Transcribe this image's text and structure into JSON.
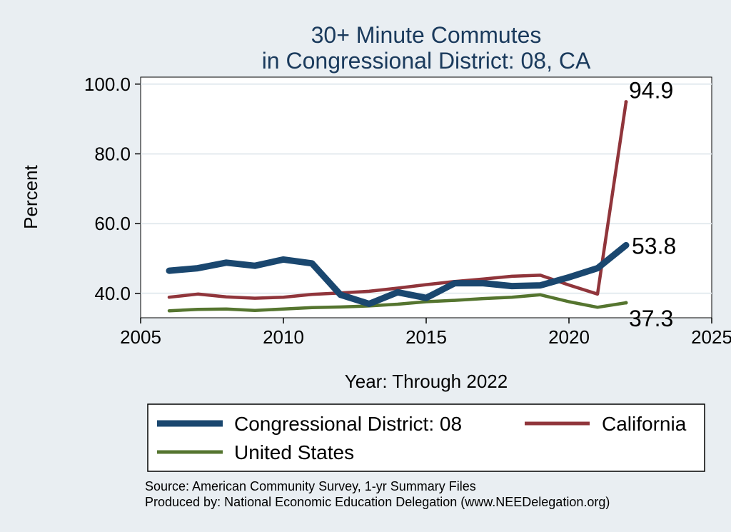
{
  "chart_data": {
    "type": "line",
    "title": [
      "30+ Minute Commutes",
      "in Congressional District:  08, CA"
    ],
    "xlabel": "Year: Through 2022",
    "ylabel": "Percent",
    "xlim": [
      2005,
      2025
    ],
    "ylim": [
      33,
      102
    ],
    "xticks": [
      2005,
      2010,
      2015,
      2020,
      2025
    ],
    "xtick_labels": [
      "2005",
      "2010",
      "2015",
      "2020",
      "2025"
    ],
    "yticks": [
      40,
      60,
      80,
      100
    ],
    "ytick_labels": [
      "40.0",
      "60.0",
      "80.0",
      "100.0"
    ],
    "grid": true,
    "x": [
      2006,
      2007,
      2008,
      2009,
      2010,
      2011,
      2012,
      2013,
      2014,
      2015,
      2016,
      2017,
      2018,
      2019,
      2020,
      2021,
      2022
    ],
    "series": [
      {
        "name": "Congressional District:  08",
        "color": "#1a476f",
        "values": [
          46.5,
          47.2,
          48.8,
          47.9,
          49.7,
          48.6,
          39.6,
          37.0,
          40.3,
          38.7,
          42.9,
          42.9,
          42.1,
          42.3,
          44.6,
          47.2,
          53.8
        ],
        "end_label": "53.8"
      },
      {
        "name": "California",
        "color": "#90353b",
        "values": [
          38.9,
          39.8,
          39.0,
          38.6,
          38.9,
          39.7,
          40.1,
          40.6,
          41.5,
          42.5,
          43.4,
          44.1,
          44.9,
          45.2,
          42.4,
          39.8,
          94.9
        ],
        "end_label": "94.9"
      },
      {
        "name": "United States",
        "color": "#55752f",
        "values": [
          35.0,
          35.4,
          35.5,
          35.1,
          35.5,
          35.9,
          36.1,
          36.4,
          36.9,
          37.6,
          38.0,
          38.5,
          38.9,
          39.6,
          37.6,
          36.0,
          37.3
        ],
        "end_label": "37.3"
      }
    ],
    "legend": [
      "Congressional District:  08",
      "California",
      "United States"
    ],
    "legend_position": "bottom"
  },
  "footer": {
    "source": "Source: American Community Survey, 1-yr Summary Files",
    "produced_by": "Produced by: National Economic Education Delegation (www.NEEDelegation.org)"
  }
}
